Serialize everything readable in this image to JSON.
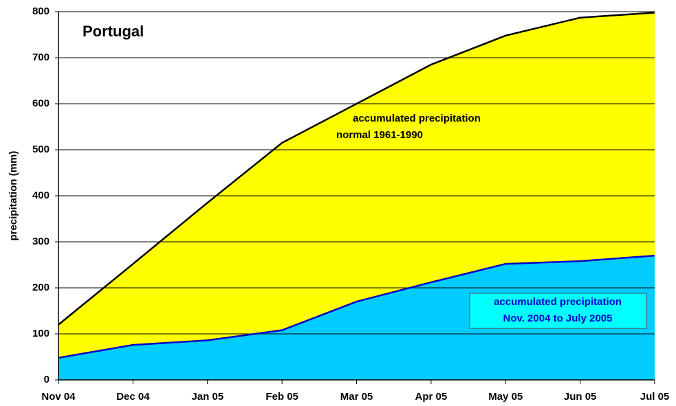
{
  "chart_data": {
    "type": "area",
    "title": "Portugal",
    "y_label": "precipitation (mm)",
    "categories": [
      "Nov 04",
      "Dec 04",
      "Jan 05",
      "Feb 05",
      "Mar 05",
      "Apr 05",
      "May 05",
      "Jun 05",
      "Jul 05"
    ],
    "series": [
      {
        "color": "#ffff00",
        "line_color": "#000000",
        "values": [
          120,
          252,
          385,
          515,
          600,
          685,
          748,
          787,
          798
        ]
      },
      {
        "color": "#00ccff",
        "line_color": "#0000cc",
        "values": [
          48,
          76,
          86,
          108,
          170,
          212,
          252,
          258,
          270
        ]
      }
    ],
    "annotations": [
      [
        "accumulated precipitation",
        "normal 1961-1990"
      ],
      [
        "accumulated precipitation",
        "Nov. 2004 to July 2005"
      ]
    ],
    "ylim": [
      0,
      800
    ],
    "yticks": [
      0,
      100,
      200,
      300,
      400,
      500,
      600,
      700,
      800
    ],
    "grid": true
  }
}
